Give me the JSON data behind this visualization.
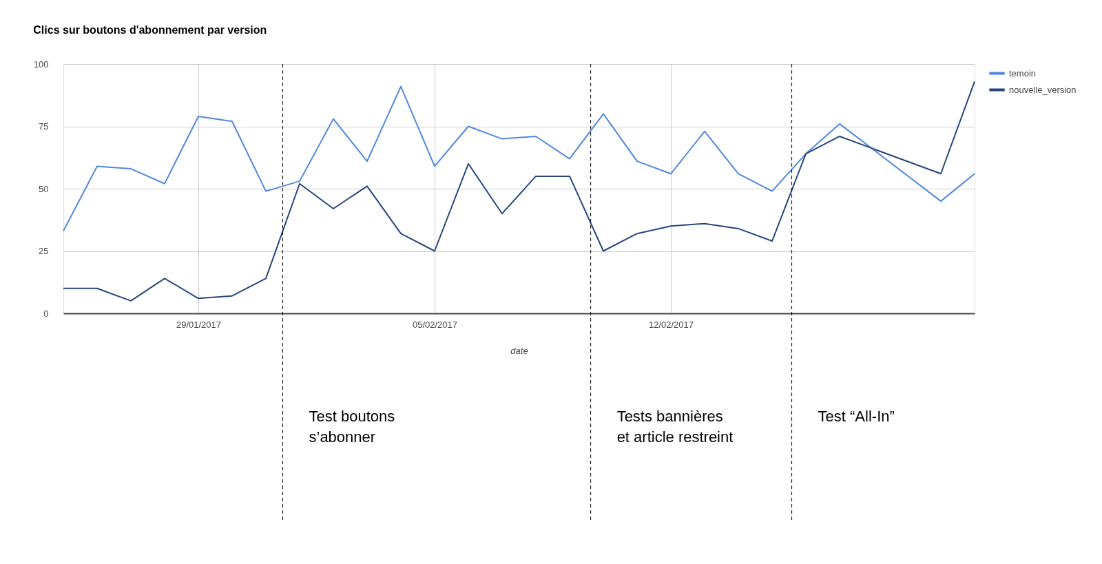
{
  "chart_data": {
    "type": "line",
    "title": "Clics sur boutons d'abonnement par version",
    "xlabel": "date",
    "xlim": [
      "2017-01-25",
      "2017-02-21"
    ],
    "xticks": [
      {
        "value": "2017-01-29",
        "label": "29/01/2017"
      },
      {
        "value": "2017-02-05",
        "label": "05/02/2017"
      },
      {
        "value": "2017-02-12",
        "label": "12/02/2017"
      }
    ],
    "ylim": [
      0,
      100
    ],
    "yticks": [
      0,
      25,
      50,
      75,
      100
    ],
    "grid": true,
    "legend": "top right",
    "series": [
      {
        "name": "temoin",
        "color": "#4f87e0",
        "x": [
          "2017-01-25",
          "2017-01-26",
          "2017-01-27",
          "2017-01-28",
          "2017-01-29",
          "2017-01-30",
          "2017-01-31",
          "2017-02-01",
          "2017-02-02",
          "2017-02-03",
          "2017-02-04",
          "2017-02-05",
          "2017-02-06",
          "2017-02-07",
          "2017-02-08",
          "2017-02-09",
          "2017-02-10",
          "2017-02-11",
          "2017-02-12",
          "2017-02-13",
          "2017-02-14",
          "2017-02-15",
          "2017-02-16",
          "2017-02-17",
          "2017-02-20",
          "2017-02-21"
        ],
        "values": [
          33,
          59,
          58,
          52,
          79,
          77,
          49,
          53,
          78,
          61,
          91,
          59,
          75,
          70,
          71,
          62,
          80,
          61,
          56,
          73,
          56,
          49,
          64,
          76,
          45,
          56
        ]
      },
      {
        "name": "nouvelle_version",
        "color": "#26457f",
        "x": [
          "2017-01-25",
          "2017-01-26",
          "2017-01-27",
          "2017-01-28",
          "2017-01-29",
          "2017-01-30",
          "2017-01-31",
          "2017-02-01",
          "2017-02-02",
          "2017-02-03",
          "2017-02-04",
          "2017-02-05",
          "2017-02-06",
          "2017-02-07",
          "2017-02-08",
          "2017-02-09",
          "2017-02-10",
          "2017-02-11",
          "2017-02-12",
          "2017-02-13",
          "2017-02-14",
          "2017-02-15",
          "2017-02-16",
          "2017-02-17",
          "2017-02-20",
          "2017-02-21"
        ],
        "values": [
          10,
          10,
          5,
          14,
          6,
          7,
          14,
          52,
          42,
          51,
          32,
          25,
          60,
          40,
          55,
          55,
          25,
          32,
          35,
          36,
          34,
          29,
          64,
          71,
          56,
          93
        ]
      }
    ],
    "ref_lines": [
      {
        "axis": "x",
        "value": "2017-01-31T12:00",
        "label": "Test boutons\ns’abonner",
        "color": "#000000",
        "line_style": "dashed"
      },
      {
        "axis": "x",
        "value": "2017-02-09T15:00",
        "label": "Tests bannières\net article restreint",
        "color": "#000000",
        "line_style": "dashed"
      },
      {
        "axis": "x",
        "value": "2017-02-15T14:00",
        "label": "Test “All-In”",
        "color": "#000000",
        "line_style": "dashed"
      }
    ]
  }
}
